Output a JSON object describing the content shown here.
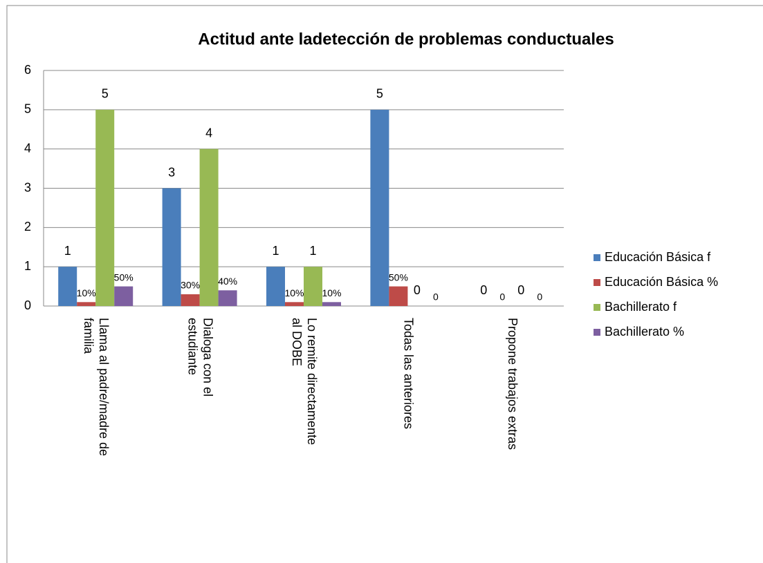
{
  "chart_data": {
    "type": "bar",
    "title": "Actitud ante ladetección de problemas conductuales",
    "categories": [
      "Llama al padre/madre de familia",
      "Dialoga con el estudiante",
      "Lo remite directamente al DOBE",
      "Todas las anteriores",
      "Propone trabajos extras"
    ],
    "series": [
      {
        "name": "Educación Básica f",
        "color": "#4a7ebb",
        "values": [
          1,
          3,
          1,
          5,
          0
        ]
      },
      {
        "name": "Educación Básica %",
        "color": "#be4b48",
        "values": [
          0.1,
          0.3,
          0.1,
          0.5,
          0
        ],
        "value_labels": [
          "10%",
          "30%",
          "10%",
          "50%",
          "0"
        ]
      },
      {
        "name": "Bachillerato f",
        "color": "#98b954",
        "values": [
          5,
          4,
          1,
          0,
          0
        ]
      },
      {
        "name": "Bachillerato %",
        "color": "#7d5fa0",
        "values": [
          0.5,
          0.4,
          0.1,
          0,
          0
        ],
        "value_labels": [
          "50%",
          "40%",
          "10%",
          "0",
          "0"
        ]
      }
    ],
    "ylim": [
      0,
      6
    ],
    "yticks": [
      0,
      1,
      2,
      3,
      4,
      5,
      6
    ],
    "grid": true,
    "legend": "right"
  }
}
